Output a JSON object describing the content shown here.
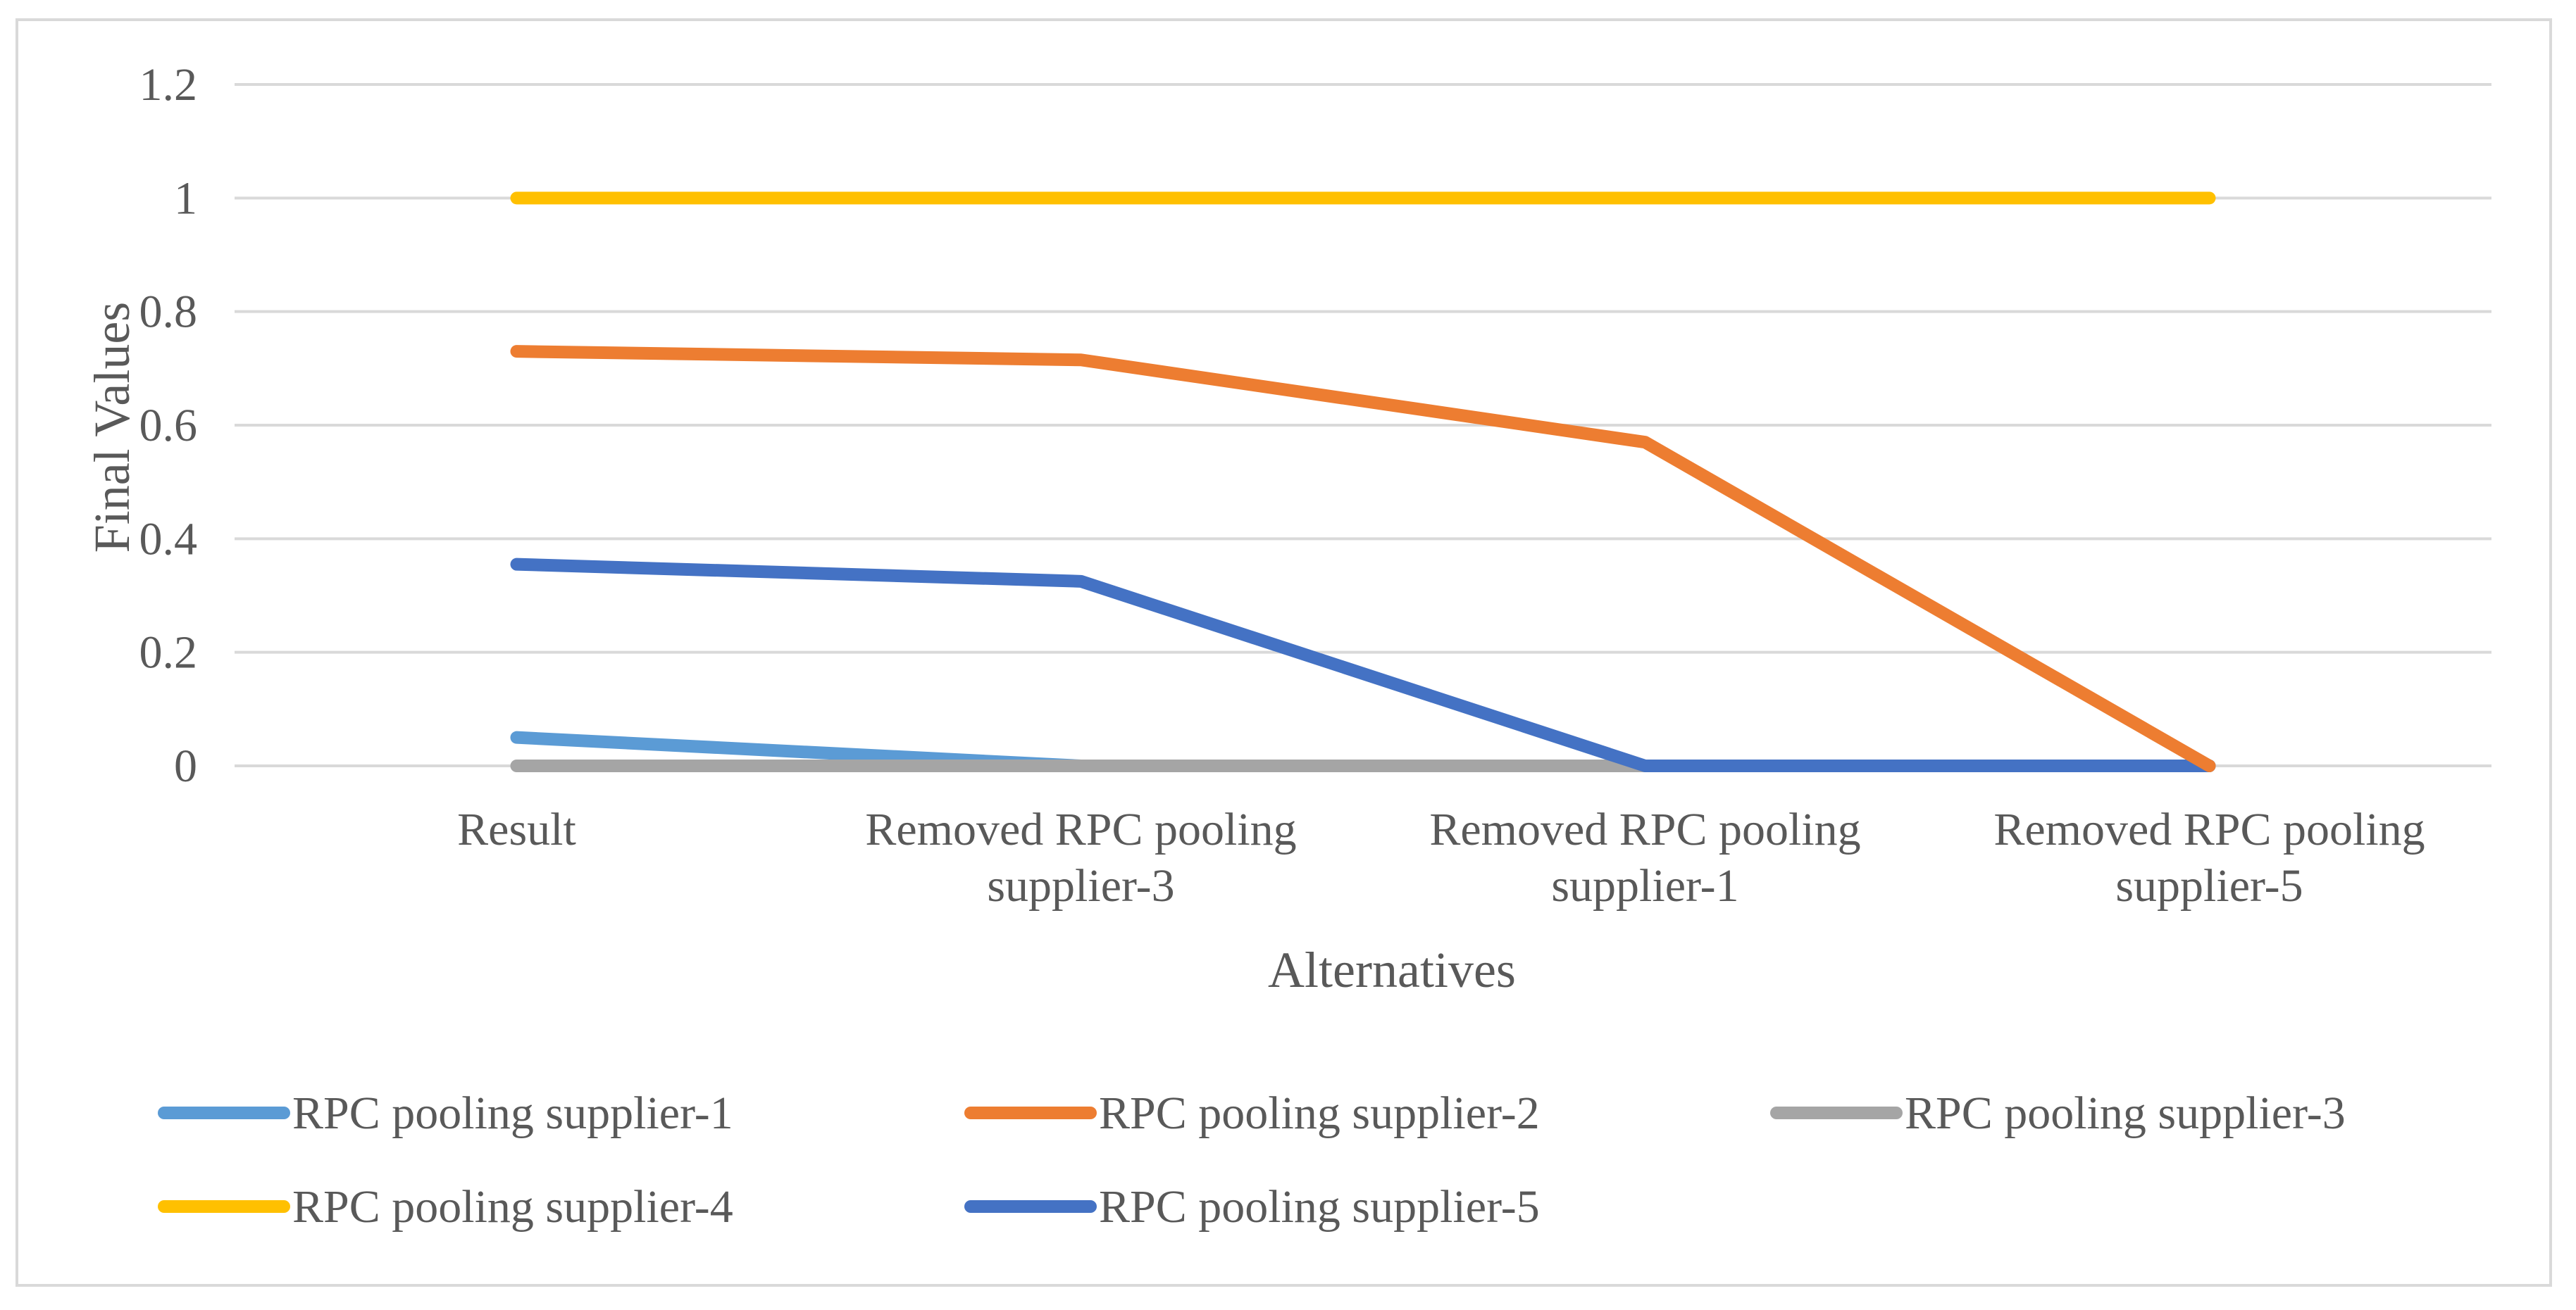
{
  "chart_data": {
    "type": "line",
    "title": "",
    "xlabel": "Alternatives",
    "ylabel": "Final Values",
    "ylim": [
      0,
      1.2
    ],
    "yticks": [
      "0",
      "0.2",
      "0.4",
      "0.6",
      "0.8",
      "1",
      "1.2"
    ],
    "yticks_values": [
      0,
      0.2,
      0.4,
      0.6,
      0.8,
      1.0,
      1.2
    ],
    "grid": true,
    "legend_position": "bottom",
    "categories": [
      [
        "Result"
      ],
      [
        "Removed RPC pooling",
        "supplier-3"
      ],
      [
        "Removed RPC pooling",
        "supplier-1"
      ],
      [
        "Removed RPC pooling",
        "supplier-5"
      ]
    ],
    "series": [
      {
        "name": "RPC pooling supplier-1",
        "color": "#5b9bd5",
        "values": [
          0.05,
          0,
          0,
          0
        ]
      },
      {
        "name": "RPC pooling supplier-2",
        "color": "#ed7d31",
        "values": [
          0.73,
          0.715,
          0.57,
          0
        ]
      },
      {
        "name": "RPC pooling supplier-3",
        "color": "#a5a5a5",
        "values": [
          0,
          0,
          0,
          0
        ]
      },
      {
        "name": "RPC pooling supplier-4",
        "color": "#ffc000",
        "values": [
          1,
          1,
          1,
          1
        ]
      },
      {
        "name": "RPC pooling supplier-5",
        "color": "#4472c4",
        "values": [
          0.355,
          0.325,
          0,
          0
        ]
      }
    ]
  }
}
